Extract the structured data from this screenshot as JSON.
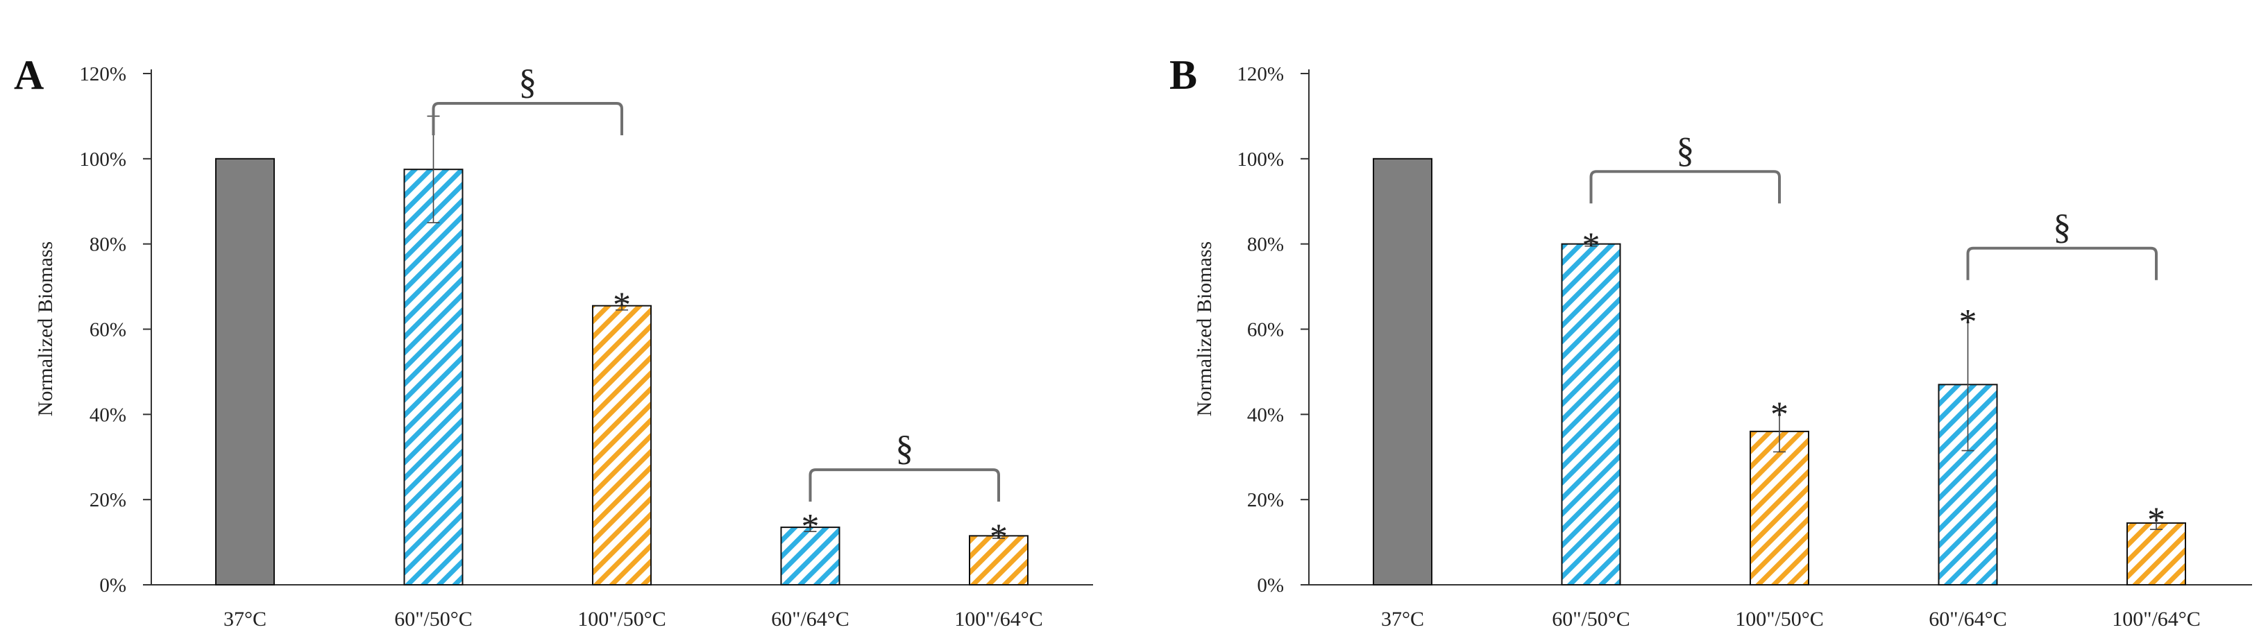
{
  "chart_data": [
    {
      "panel": "A",
      "type": "bar",
      "ylabel": "Normalized Biomass",
      "xlabel": "",
      "ylim": [
        0,
        120
      ],
      "yticks": [
        "0%",
        "20%",
        "40%",
        "60%",
        "80%",
        "100%",
        "120%"
      ],
      "categories": [
        "37°C",
        "60\"/50°C",
        "100\"/50°C",
        "60\"/64°C",
        "100\"/64°C"
      ],
      "values": [
        100,
        97.5,
        65.5,
        13.5,
        11.5
      ],
      "errors": [
        0,
        12.5,
        1,
        1,
        0.6
      ],
      "styles": [
        "solid-gray",
        "hatch-blue",
        "hatch-orange",
        "hatch-blue",
        "hatch-orange"
      ],
      "stars": [
        false,
        false,
        true,
        true,
        true
      ],
      "star_symbol": "*",
      "brackets": [
        {
          "from": 1,
          "to": 2,
          "symbol": "§",
          "level": 113
        },
        {
          "from": 3,
          "to": 4,
          "symbol": "§",
          "level": 27
        }
      ]
    },
    {
      "panel": "B",
      "type": "bar",
      "ylabel": "Normalized Biomass",
      "xlabel": "",
      "ylim": [
        0,
        120
      ],
      "yticks": [
        "0%",
        "20%",
        "40%",
        "60%",
        "80%",
        "100%",
        "120%"
      ],
      "categories": [
        "37°C",
        "60\"/50°C",
        "100\"/50°C",
        "60\"/64°C",
        "100\"/64°C"
      ],
      "values": [
        100,
        80,
        36,
        47,
        14.5
      ],
      "errors": [
        0,
        0.5,
        4.8,
        15.5,
        1.5
      ],
      "styles": [
        "solid-gray",
        "hatch-blue",
        "hatch-orange",
        "hatch-blue",
        "hatch-orange"
      ],
      "stars": [
        false,
        true,
        true,
        true,
        true
      ],
      "star_symbol": "*",
      "brackets": [
        {
          "from": 1,
          "to": 2,
          "symbol": "§",
          "level": 97
        },
        {
          "from": 3,
          "to": 4,
          "symbol": "§",
          "level": 79
        }
      ]
    }
  ],
  "colors": {
    "gray": "#7f7f7f",
    "blue": "#2eb0e4",
    "orange": "#f5a623",
    "axis": "#333333",
    "bracket": "#707070"
  }
}
